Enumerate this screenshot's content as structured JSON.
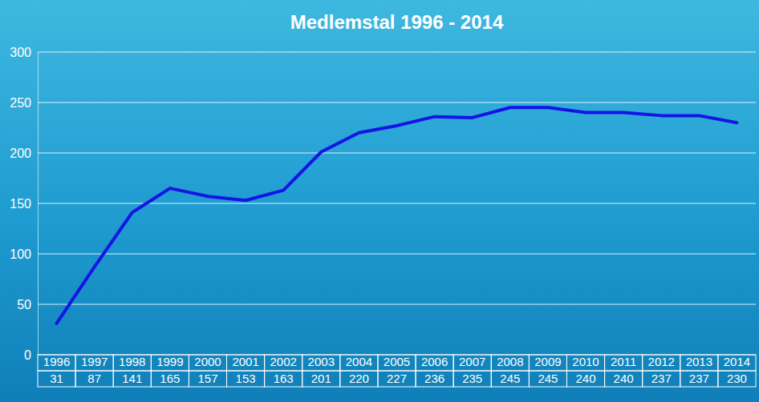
{
  "chart_data": {
    "type": "line",
    "title": "Medlemstal 1996 - 2014",
    "categories": [
      "1996",
      "1997",
      "1998",
      "1999",
      "2000",
      "2001",
      "2002",
      "2003",
      "2004",
      "2005",
      "2006",
      "2007",
      "2008",
      "2009",
      "2010",
      "2011",
      "2012",
      "2013",
      "2014"
    ],
    "values": [
      31,
      87,
      141,
      165,
      157,
      153,
      163,
      201,
      220,
      227,
      236,
      235,
      245,
      245,
      240,
      240,
      237,
      237,
      230
    ],
    "color": "#1414e6",
    "ylim": [
      0,
      300
    ],
    "yticks": [
      0,
      50,
      100,
      150,
      200,
      250,
      300
    ],
    "grid": true,
    "data_labels": true
  }
}
